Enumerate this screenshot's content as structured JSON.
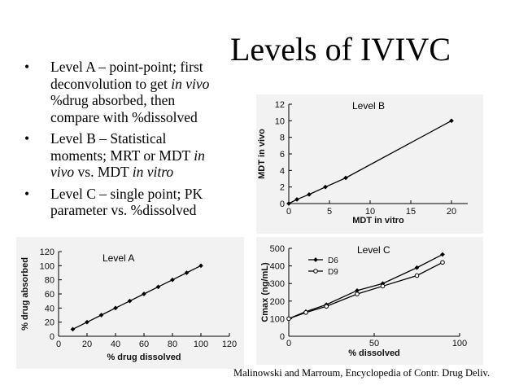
{
  "slide": {
    "title": "Levels of IVIVC",
    "bullets": [
      {
        "parts": [
          {
            "t": "Level A – point-point; first deconvolution to get "
          },
          {
            "t": "in vivo",
            "i": true
          },
          {
            "t": " %drug absorbed, then compare with %dissolved"
          }
        ]
      },
      {
        "parts": [
          {
            "t": "Level B – Statistical moments; MRT or MDT "
          },
          {
            "t": "in vivo",
            "i": true
          },
          {
            "t": " vs. MDT "
          },
          {
            "t": "in vitro",
            "i": true
          }
        ]
      },
      {
        "parts": [
          {
            "t": "Level C – single point; PK parameter vs. %dissolved"
          }
        ]
      }
    ],
    "bullet_glyph": "•",
    "citation": "Malinowski and Marroum, Encyclopedia of Contr. Drug Deliv."
  },
  "chart_data": [
    {
      "id": "B",
      "type": "line",
      "title": "Level  B",
      "xlabel": "MDT in vitro",
      "ylabel": "MDT in vivo",
      "xlim": [
        0,
        22
      ],
      "ylim": [
        0,
        12
      ],
      "xticks": [
        0,
        5,
        10,
        15,
        20
      ],
      "yticks": [
        0,
        2,
        4,
        6,
        8,
        10,
        12
      ],
      "grid": false,
      "series": [
        {
          "name": "",
          "marker": "filled",
          "x": [
            0,
            1,
            2.5,
            4.5,
            7,
            20
          ],
          "y": [
            0,
            0.5,
            1.1,
            2,
            3.1,
            10
          ]
        }
      ]
    },
    {
      "id": "A",
      "type": "line",
      "title": "Level  A",
      "xlabel": "% drug dissolved",
      "ylabel": "% drug absorbed",
      "xlim": [
        0,
        120
      ],
      "ylim": [
        0,
        120
      ],
      "xticks": [
        0,
        20,
        40,
        60,
        80,
        100,
        120
      ],
      "yticks": [
        0,
        20,
        40,
        60,
        80,
        100,
        120
      ],
      "grid": false,
      "series": [
        {
          "name": "",
          "marker": "filled",
          "x": [
            10,
            20,
            30,
            40,
            50,
            60,
            70,
            80,
            90,
            100
          ],
          "y": [
            10,
            20,
            30,
            40,
            50,
            60,
            70,
            80,
            90,
            100
          ]
        }
      ]
    },
    {
      "id": "C",
      "type": "line",
      "title": "Level  C",
      "xlabel": "% dissolved",
      "ylabel": "Cmax (ng/mL)",
      "xlim": [
        0,
        100
      ],
      "ylim": [
        0,
        500
      ],
      "xticks": [
        0,
        50,
        100
      ],
      "yticks": [
        0,
        100,
        200,
        300,
        400,
        500
      ],
      "legend": "top-left",
      "grid": false,
      "series": [
        {
          "name": "D6",
          "marker": "filled",
          "x": [
            0,
            10,
            22,
            40,
            55,
            75,
            90
          ],
          "y": [
            100,
            140,
            180,
            260,
            300,
            390,
            465
          ]
        },
        {
          "name": "D9",
          "marker": "open",
          "x": [
            0,
            10,
            22,
            40,
            55,
            75,
            90
          ],
          "y": [
            100,
            135,
            170,
            240,
            285,
            345,
            420
          ]
        }
      ]
    }
  ]
}
